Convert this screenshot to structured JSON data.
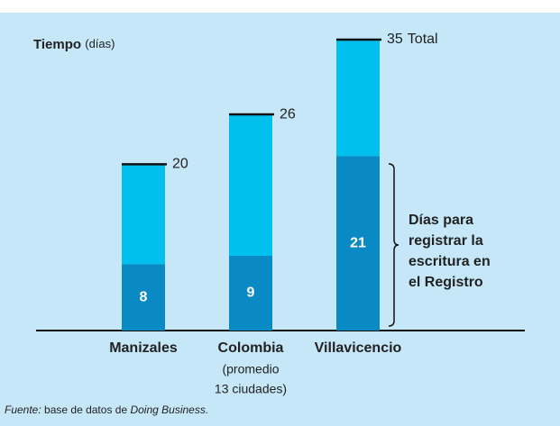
{
  "chart_data": {
    "type": "bar",
    "stacked": true,
    "y_label": "Tiempo",
    "y_unit": "(días)",
    "categories": [
      "Manizales",
      "Colombia",
      "Villavicencio"
    ],
    "category_notes": [
      [],
      [
        "(promedio",
        "13 ciudades)"
      ],
      []
    ],
    "series": [
      {
        "name_lines": [
          "Días para",
          "registrar la",
          "escritura en",
          "el Registro"
        ],
        "color": "#0a8ac4",
        "values": [
          8,
          9,
          21
        ]
      },
      {
        "color": "#00c0f0",
        "values": [
          12,
          17,
          14
        ]
      }
    ],
    "totals": [
      20,
      26,
      35
    ],
    "total_suffix": "Total",
    "ylim": [
      0,
      35
    ],
    "source": {
      "label": "Fuente:",
      "text": "base de datos de",
      "italic": "Doing Business."
    }
  }
}
